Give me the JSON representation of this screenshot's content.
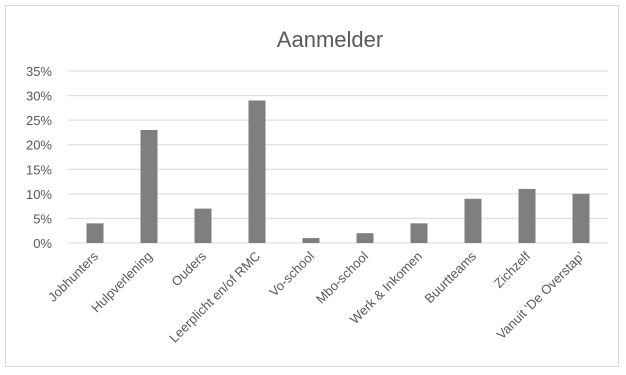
{
  "chart_data": {
    "type": "bar",
    "title": "Aanmelder",
    "xlabel": "",
    "ylabel": "",
    "categories": [
      "Jobhunters",
      "Hulpverlening",
      "Ouders",
      "Leerplicht en/of RMC",
      "Vo-school",
      "Mbo-school",
      "Werk & Inkomen",
      "Buurtteams",
      "Zichzelf",
      "Vanuit 'De Overstap'"
    ],
    "values": [
      4,
      23,
      7,
      29,
      1,
      2,
      4,
      9,
      11,
      10
    ],
    "ylim": [
      0,
      35
    ],
    "yticks": [
      0,
      5,
      10,
      15,
      20,
      25,
      30,
      35
    ],
    "ytick_labels": [
      "0%",
      "5%",
      "10%",
      "15%",
      "20%",
      "25%",
      "30%",
      "35%"
    ],
    "grid": true,
    "legend": "none",
    "bar_color": "#7f7f7f"
  }
}
